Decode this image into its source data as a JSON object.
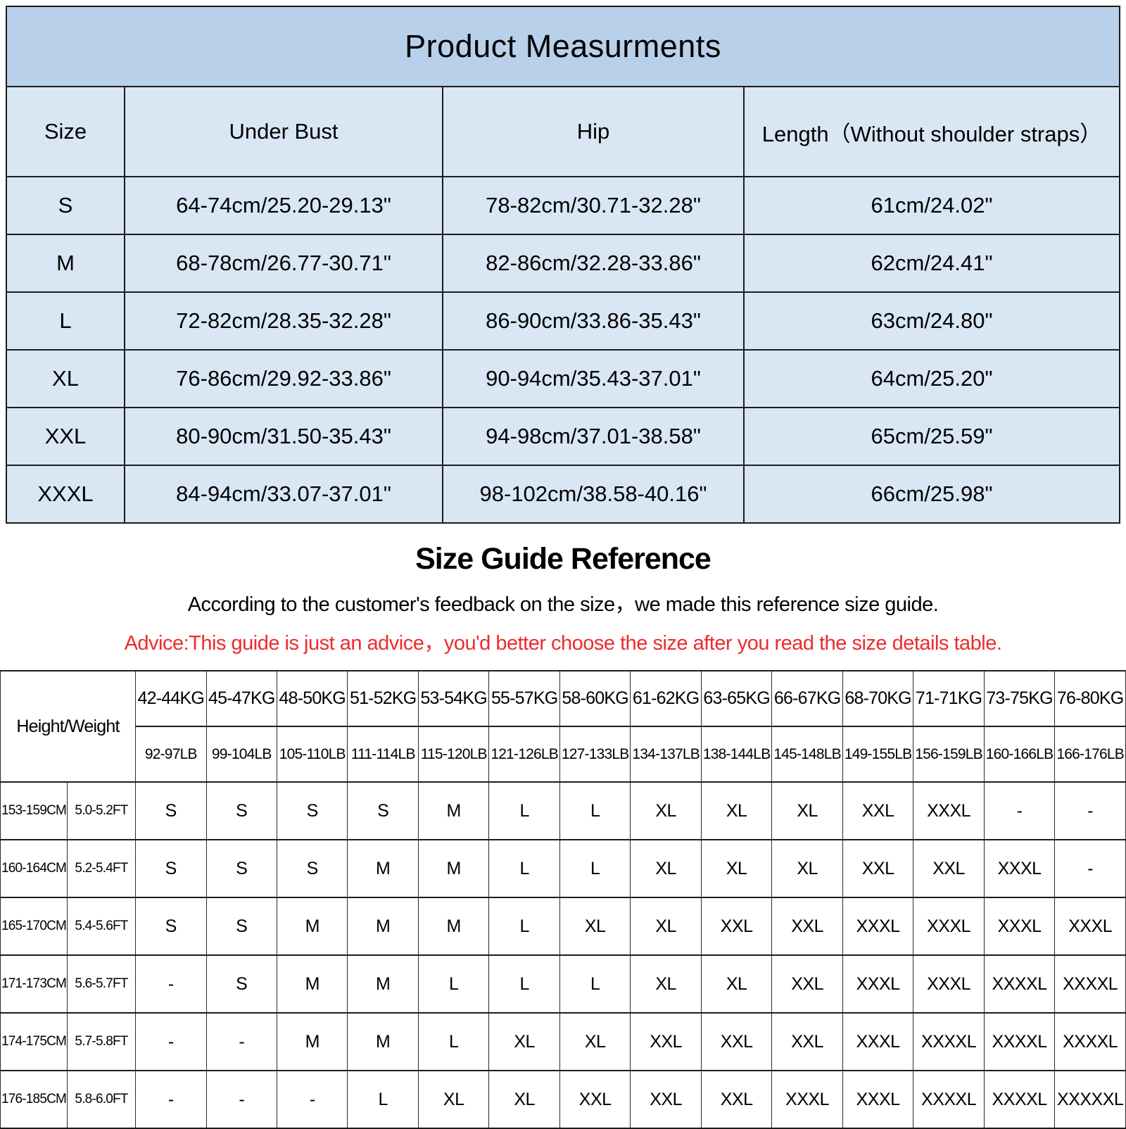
{
  "title": "Product Measurments",
  "measurements_table": {
    "headers": [
      "Size",
      "Under Bust",
      "Hip",
      "Length（Without shoulder straps）"
    ],
    "rows": [
      [
        "S",
        "64-74cm/25.20-29.13\"",
        "78-82cm/30.71-32.28\"",
        "61cm/24.02\""
      ],
      [
        "M",
        "68-78cm/26.77-30.71\"",
        "82-86cm/32.28-33.86\"",
        "62cm/24.41\""
      ],
      [
        "L",
        "72-82cm/28.35-32.28\"",
        "86-90cm/33.86-35.43\"",
        "63cm/24.80\""
      ],
      [
        "XL",
        "76-86cm/29.92-33.86\"",
        "90-94cm/35.43-37.01\"",
        "64cm/25.20\""
      ],
      [
        "XXL",
        "80-90cm/31.50-35.43\"",
        "94-98cm/37.01-38.58\"",
        "65cm/25.59\""
      ],
      [
        "XXXL",
        "84-94cm/33.07-37.01\"",
        "98-102cm/38.58-40.16\"",
        "66cm/25.98\""
      ]
    ]
  },
  "size_guide": {
    "title": "Size Guide Reference",
    "subtitle": "According to the customer's feedback on the size，we made this reference size guide.",
    "advice": "Advice:This guide is just an advice，you'd better choose the size after you read the size details table.",
    "advice_color": "#ee2b2b"
  },
  "reference_table": {
    "corner_label": "Height/Weight",
    "weight_columns_kg": [
      "42-44KG",
      "45-47KG",
      "48-50KG",
      "51-52KG",
      "53-54KG",
      "55-57KG",
      "58-60KG",
      "61-62KG",
      "63-65KG",
      "66-67KG",
      "68-70KG",
      "71-71KG",
      "73-75KG",
      "76-80KG"
    ],
    "weight_columns_lb": [
      "92-97LB",
      "99-104LB",
      "105-110LB",
      "111-114LB",
      "115-120LB",
      "121-126LB",
      "127-133LB",
      "134-137LB",
      "138-144LB",
      "145-148LB",
      "149-155LB",
      "156-159LB",
      "160-166LB",
      "166-176LB"
    ],
    "rows": [
      {
        "height_cm": "153-159CM",
        "height_ft": "5.0-5.2FT",
        "sizes": [
          "S",
          "S",
          "S",
          "S",
          "M",
          "L",
          "L",
          "XL",
          "XL",
          "XL",
          "XXL",
          "XXXL",
          "-",
          "-"
        ]
      },
      {
        "height_cm": "160-164CM",
        "height_ft": "5.2-5.4FT",
        "sizes": [
          "S",
          "S",
          "S",
          "M",
          "M",
          "L",
          "L",
          "XL",
          "XL",
          "XL",
          "XXL",
          "XXL",
          "XXXL",
          "-"
        ]
      },
      {
        "height_cm": "165-170CM",
        "height_ft": "5.4-5.6FT",
        "sizes": [
          "S",
          "S",
          "M",
          "M",
          "M",
          "L",
          "XL",
          "XL",
          "XXL",
          "XXL",
          "XXXL",
          "XXXL",
          "XXXL",
          "XXXL"
        ]
      },
      {
        "height_cm": "171-173CM",
        "height_ft": "5.6-5.7FT",
        "sizes": [
          "-",
          "S",
          "M",
          "M",
          "L",
          "L",
          "L",
          "XL",
          "XL",
          "XXL",
          "XXXL",
          "XXXL",
          "XXXXL",
          "XXXXL"
        ]
      },
      {
        "height_cm": "174-175CM",
        "height_ft": "5.7-5.8FT",
        "sizes": [
          "-",
          "-",
          "M",
          "M",
          "L",
          "XL",
          "XL",
          "XXL",
          "XXL",
          "XXL",
          "XXXL",
          "XXXXL",
          "XXXXL",
          "XXXXL"
        ]
      },
      {
        "height_cm": "176-185CM",
        "height_ft": "5.8-6.0FT",
        "sizes": [
          "-",
          "-",
          "-",
          "L",
          "XL",
          "XL",
          "XXL",
          "XXL",
          "XXL",
          "XXXL",
          "XXXL",
          "XXXXL",
          "XXXXL",
          "XXXXXL"
        ]
      }
    ]
  },
  "colors": {
    "title_band": "#b9d0ea",
    "cell_bg": "#d9e6f4",
    "advice_red": "#ee2b2b"
  }
}
